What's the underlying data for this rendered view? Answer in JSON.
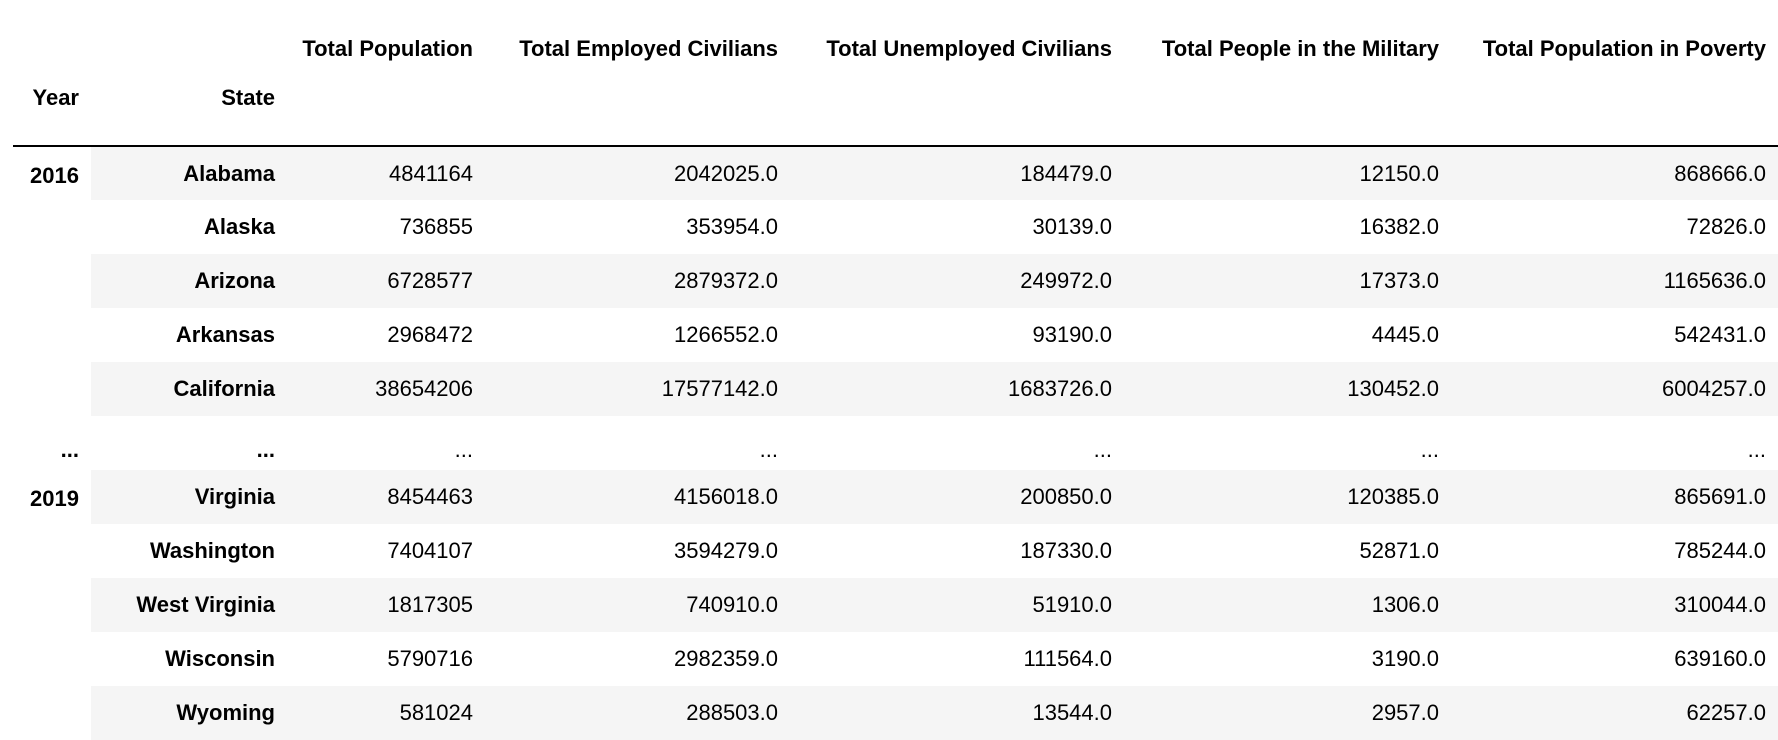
{
  "table": {
    "columns": [
      "Total Population",
      "Total Employed Civilians",
      "Total Unemployed Civilians",
      "Total People in the Military",
      "Total Population in Poverty"
    ],
    "index_names": [
      "Year",
      "State"
    ],
    "groups": [
      {
        "year": "2016",
        "rows": [
          {
            "state": "Alabama",
            "values": [
              "4841164",
              "2042025.0",
              "184479.0",
              "12150.0",
              "868666.0"
            ]
          },
          {
            "state": "Alaska",
            "values": [
              "736855",
              "353954.0",
              "30139.0",
              "16382.0",
              "72826.0"
            ]
          },
          {
            "state": "Arizona",
            "values": [
              "6728577",
              "2879372.0",
              "249972.0",
              "17373.0",
              "1165636.0"
            ]
          },
          {
            "state": "Arkansas",
            "values": [
              "2968472",
              "1266552.0",
              "93190.0",
              "4445.0",
              "542431.0"
            ]
          },
          {
            "state": "California",
            "values": [
              "38654206",
              "17577142.0",
              "1683726.0",
              "130452.0",
              "6004257.0"
            ]
          }
        ]
      },
      {
        "year": "2019",
        "rows": [
          {
            "state": "Virginia",
            "values": [
              "8454463",
              "4156018.0",
              "200850.0",
              "120385.0",
              "865691.0"
            ]
          },
          {
            "state": "Washington",
            "values": [
              "7404107",
              "3594279.0",
              "187330.0",
              "52871.0",
              "785244.0"
            ]
          },
          {
            "state": "West Virginia",
            "values": [
              "1817305",
              "740910.0",
              "51910.0",
              "1306.0",
              "310044.0"
            ]
          },
          {
            "state": "Wisconsin",
            "values": [
              "5790716",
              "2982359.0",
              "111564.0",
              "3190.0",
              "639160.0"
            ]
          },
          {
            "state": "Wyoming",
            "values": [
              "581024",
              "288503.0",
              "13544.0",
              "2957.0",
              "62257.0"
            ]
          }
        ]
      }
    ],
    "ellipsis": "..."
  }
}
